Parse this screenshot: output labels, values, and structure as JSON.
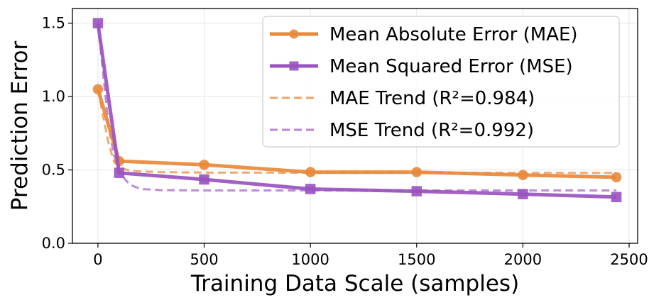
{
  "chart_data": {
    "type": "line",
    "title": "",
    "xlabel": "Training Data Scale (samples)",
    "ylabel": "Prediction Error",
    "xlim": [
      -120,
      2540
    ],
    "ylim": [
      0.0,
      1.6
    ],
    "xticks": [
      0,
      500,
      1000,
      1500,
      2000,
      2500
    ],
    "xtick_labels": [
      "0",
      "500",
      "1000",
      "1500",
      "2000",
      "2500"
    ],
    "yticks": [
      0.0,
      0.5,
      1.0,
      1.5
    ],
    "ytick_labels": [
      "0.0",
      "0.5",
      "1.0",
      "1.5"
    ],
    "grid": true,
    "legend_position": "top-right",
    "series": [
      {
        "name": "Mean Absolute Error (MAE)",
        "style": "solid",
        "marker": "circle",
        "color": "#E8893A",
        "x": [
          0,
          100,
          500,
          1000,
          1500,
          2000,
          2440
        ],
        "values": [
          1.05,
          0.56,
          0.535,
          0.485,
          0.485,
          0.465,
          0.45
        ]
      },
      {
        "name": "Mean Squared Error (MSE)",
        "style": "solid",
        "marker": "square",
        "color": "#9A53C0",
        "x": [
          0,
          100,
          500,
          1000,
          1500,
          2000,
          2440
        ],
        "values": [
          1.5,
          0.48,
          0.435,
          0.37,
          0.355,
          0.335,
          0.315
        ]
      },
      {
        "name": "MAE Trend (R²=0.984)",
        "style": "dashed",
        "color": "#F0A468",
        "x": [
          0,
          25,
          50,
          75,
          100,
          125,
          150,
          200,
          300,
          500,
          1000,
          1500,
          2000,
          2440
        ],
        "values": [
          1.05,
          0.86,
          0.68,
          0.56,
          0.52,
          0.505,
          0.495,
          0.49,
          0.485,
          0.482,
          0.481,
          0.48,
          0.48,
          0.48
        ]
      },
      {
        "name": "MSE Trend (R²=0.992)",
        "style": "dashed",
        "color": "#B985D6",
        "x": [
          0,
          25,
          50,
          75,
          100,
          125,
          150,
          200,
          300,
          500,
          1000,
          1500,
          2000,
          2440
        ],
        "values": [
          1.5,
          1.15,
          0.8,
          0.6,
          0.5,
          0.44,
          0.4,
          0.37,
          0.362,
          0.36,
          0.36,
          0.36,
          0.36,
          0.36
        ]
      }
    ]
  }
}
